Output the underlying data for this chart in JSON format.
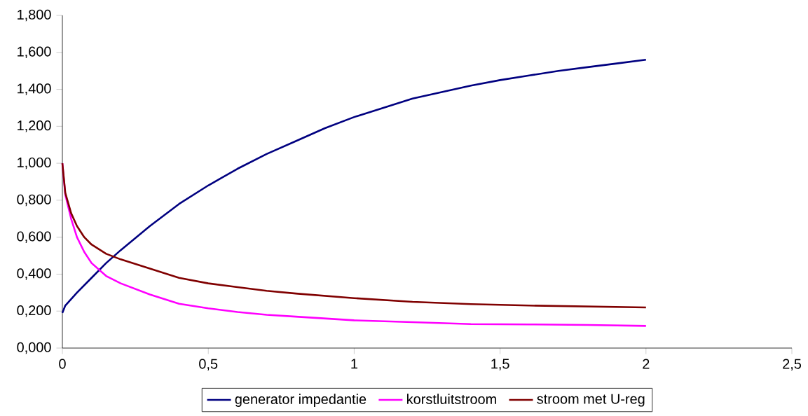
{
  "chart_data": {
    "type": "line",
    "legend": "bottom",
    "xlim": [
      0,
      2.5
    ],
    "ylim": [
      0,
      1.8
    ],
    "xticks": [
      0,
      {
        "value": 0.5,
        "label": "0,5"
      },
      1,
      {
        "value": 1.5,
        "label": "1,5"
      },
      2,
      {
        "value": 2.5,
        "label": "2,5"
      }
    ],
    "yticks": [
      {
        "value": 0,
        "label": "0,000"
      },
      {
        "value": 0.2,
        "label": "0,200"
      },
      {
        "value": 0.4,
        "label": "0,400"
      },
      {
        "value": 0.6,
        "label": "0,600"
      },
      {
        "value": 0.8,
        "label": "0,800"
      },
      {
        "value": 1.0,
        "label": "1,000"
      },
      {
        "value": 1.2,
        "label": "1,200"
      },
      {
        "value": 1.4,
        "label": "1,400"
      },
      {
        "value": 1.6,
        "label": "1,600"
      },
      {
        "value": 1.8,
        "label": "1,800"
      }
    ],
    "series": [
      {
        "name": "generator impedantie",
        "color": "#000080",
        "x": [
          0,
          0.01,
          0.05,
          0.1,
          0.15,
          0.2,
          0.3,
          0.4,
          0.5,
          0.6,
          0.7,
          0.8,
          0.9,
          1.0,
          1.1,
          1.2,
          1.3,
          1.4,
          1.5,
          1.6,
          1.7,
          1.8,
          1.9,
          2.0
        ],
        "values": [
          0.19,
          0.23,
          0.3,
          0.38,
          0.46,
          0.53,
          0.66,
          0.78,
          0.88,
          0.97,
          1.05,
          1.12,
          1.19,
          1.25,
          1.3,
          1.35,
          1.385,
          1.42,
          1.45,
          1.475,
          1.5,
          1.52,
          1.54,
          1.56
        ]
      },
      {
        "name": "korstluitstroom",
        "color": "#ff00ff",
        "x": [
          0,
          0.01,
          0.03,
          0.05,
          0.075,
          0.1,
          0.15,
          0.2,
          0.3,
          0.4,
          0.5,
          0.6,
          0.7,
          0.8,
          1.0,
          1.2,
          1.4,
          1.6,
          1.8,
          2.0
        ],
        "values": [
          1.0,
          0.83,
          0.7,
          0.6,
          0.52,
          0.46,
          0.39,
          0.35,
          0.29,
          0.24,
          0.215,
          0.195,
          0.18,
          0.17,
          0.15,
          0.14,
          0.13,
          0.128,
          0.125,
          0.12
        ]
      },
      {
        "name": "stroom met U-reg",
        "color": "#800000",
        "x": [
          0,
          0.01,
          0.03,
          0.05,
          0.075,
          0.1,
          0.15,
          0.2,
          0.3,
          0.4,
          0.5,
          0.6,
          0.7,
          0.8,
          1.0,
          1.2,
          1.4,
          1.6,
          1.8,
          2.0
        ],
        "values": [
          1.0,
          0.84,
          0.73,
          0.66,
          0.6,
          0.56,
          0.51,
          0.48,
          0.43,
          0.38,
          0.35,
          0.33,
          0.31,
          0.295,
          0.27,
          0.25,
          0.238,
          0.23,
          0.225,
          0.22
        ]
      }
    ]
  }
}
